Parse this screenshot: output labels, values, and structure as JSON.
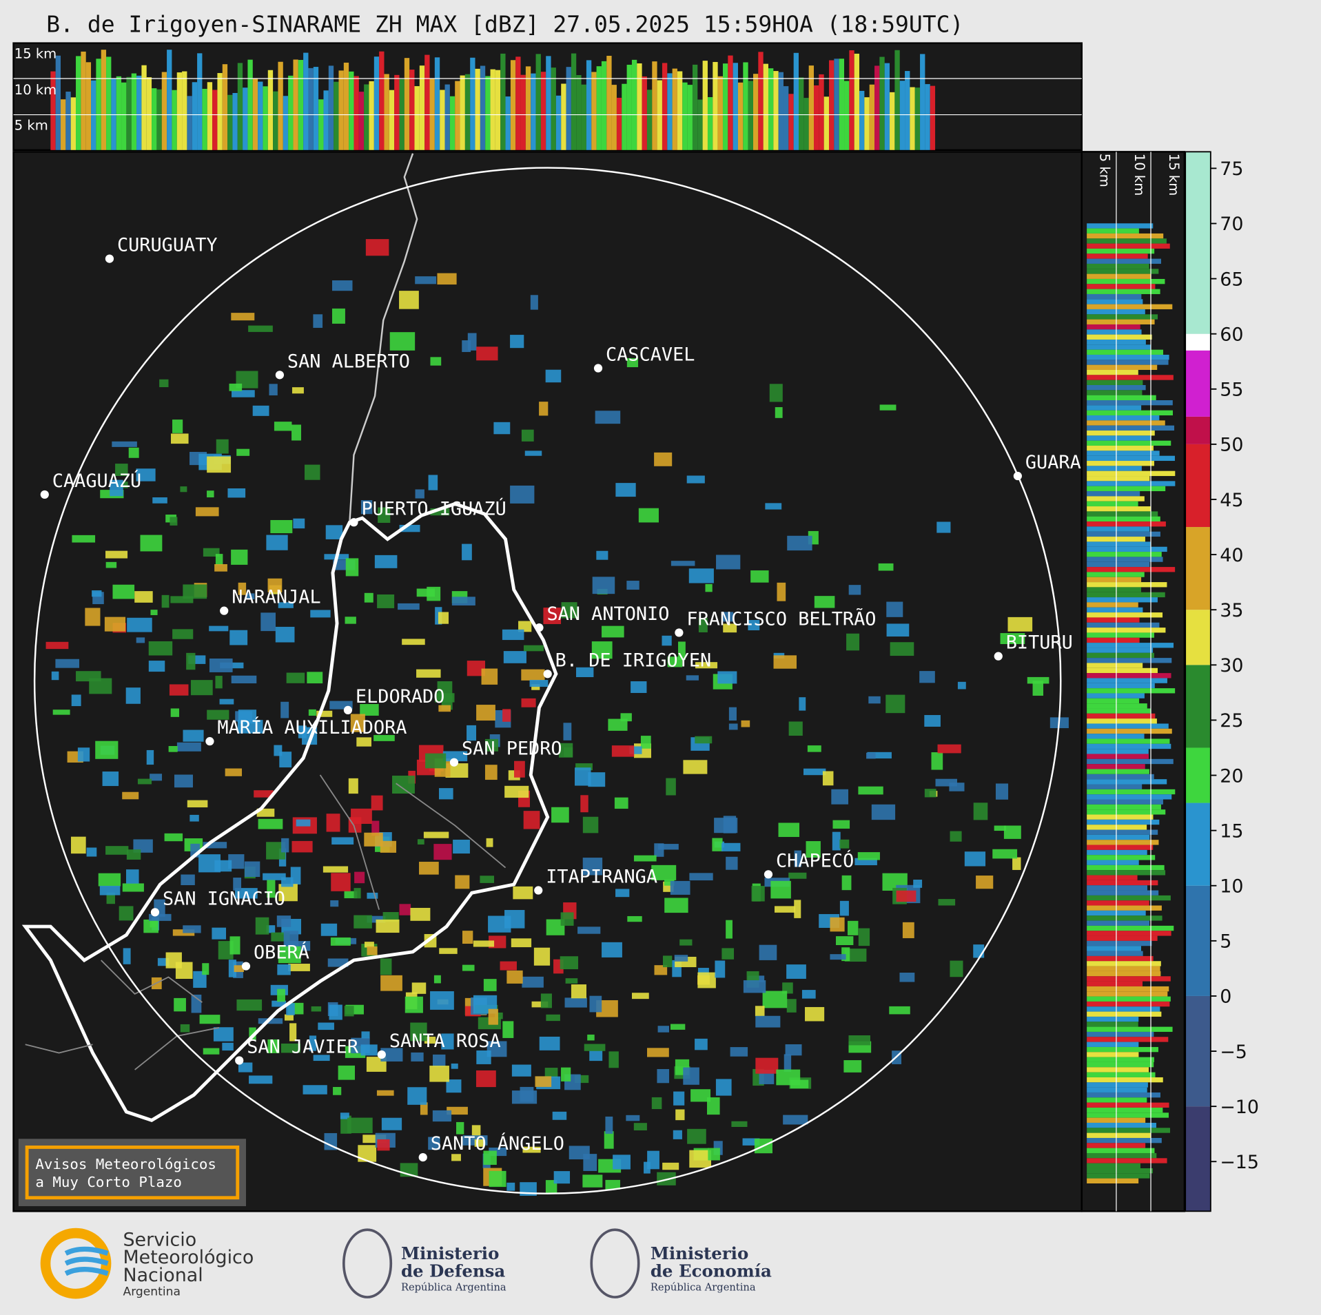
{
  "title": "B. de Irigoyen-SINARAME ZH MAX [dBZ] 27.05.2025 15:59HOA (18:59UTC)",
  "top_panel_labels": [
    "15 km",
    "10 km",
    "5 km"
  ],
  "side_panel_labels": [
    "5 km",
    "10 km",
    "15 km"
  ],
  "cities": [
    "CURUGUATY",
    "SAN ALBERTO",
    "CASCAVEL",
    "CAAGUAZÚ",
    "GUARA",
    "PUERTO IGUAZÚ",
    "NARANJAL",
    "SAN ANTONIO",
    "FRANCISCO BELTRÃO",
    "B. DE IRIGOYEN",
    "BITURU",
    "ELDORADO",
    "MARÍA AUXILIADORA",
    "SAN PEDRO",
    "CHAPECÓ",
    "ITAPIRANGA",
    "SAN IGNACIO",
    "OBERÁ",
    "SAN JAVIER",
    "SANTA ROSA",
    "SANTO ÁNGELO"
  ],
  "notice": [
    "Avisos Meteorológicos",
    "a Muy Corto Plazo"
  ],
  "colorbar": {
    "clim": [
      -19.5,
      76.5
    ],
    "ticks": [
      {
        "value": -15,
        "label": "−15"
      },
      {
        "value": -10,
        "label": "−10"
      },
      {
        "value": -5,
        "label": "−5"
      },
      0,
      5,
      10,
      15,
      20,
      25,
      30,
      35,
      40,
      45,
      50,
      55,
      60,
      65,
      70,
      75
    ],
    "segments": [
      {
        "from": -19.5,
        "to": -10,
        "color": "#3b3d6e"
      },
      {
        "from": -10,
        "to": 0,
        "color": "#3d5a8c"
      },
      {
        "from": 0,
        "to": 10,
        "color": "#2f74ad"
      },
      {
        "from": 10,
        "to": 17.5,
        "color": "#2a94cf"
      },
      {
        "from": 17.5,
        "to": 22.5,
        "color": "#3ed63e"
      },
      {
        "from": 22.5,
        "to": 30,
        "color": "#2a8a2e"
      },
      {
        "from": 30,
        "to": 35,
        "color": "#e6e040"
      },
      {
        "from": 35,
        "to": 42.5,
        "color": "#d8a428"
      },
      {
        "from": 42.5,
        "to": 50,
        "color": "#d8202a"
      },
      {
        "from": 50,
        "to": 52.5,
        "color": "#c0104a"
      },
      {
        "from": 52.5,
        "to": 58.5,
        "color": "#d020d0"
      },
      {
        "from": 58.5,
        "to": 60,
        "color": "#ffffff"
      },
      {
        "from": 60,
        "to": 76.5,
        "color": "#a8e8d0"
      }
    ]
  },
  "logos": {
    "smn": [
      "Servicio",
      "Meteorológico",
      "Nacional",
      "Argentina"
    ],
    "defensa": [
      "Ministerio",
      "de Defensa",
      "República Argentina"
    ],
    "economia": [
      "Ministerio",
      "de Economía",
      "República Argentina"
    ]
  }
}
